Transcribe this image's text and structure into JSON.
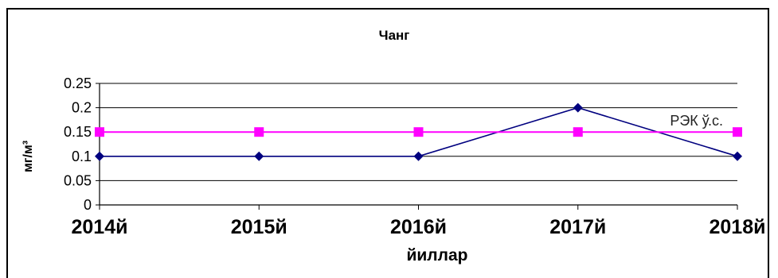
{
  "chart_data": {
    "type": "line",
    "title": "Чанг",
    "xlabel": "йиллар",
    "ylabel": "мг/м³",
    "categories": [
      "2014й",
      "2015й",
      "2016й",
      "2017й",
      "2018й"
    ],
    "ylim": [
      0,
      0.25
    ],
    "yticks": [
      "0",
      "0.05",
      "0.1",
      "0.15",
      "0.2",
      "0.25"
    ],
    "grid": true,
    "series": [
      {
        "values": [
          0.1,
          0.1,
          0.1,
          0.2,
          0.1
        ],
        "color": "#00007f",
        "marker": "diamond"
      },
      {
        "name": "РЭК ў.с.",
        "values": [
          0.15,
          0.15,
          0.15,
          0.15,
          0.15
        ],
        "color": "#ff00ff",
        "marker": "square"
      }
    ],
    "annotations": [
      {
        "text": "РЭК ў.с.",
        "at_category": "2018й",
        "near_value": 0.15,
        "placement": "above-left"
      }
    ]
  }
}
